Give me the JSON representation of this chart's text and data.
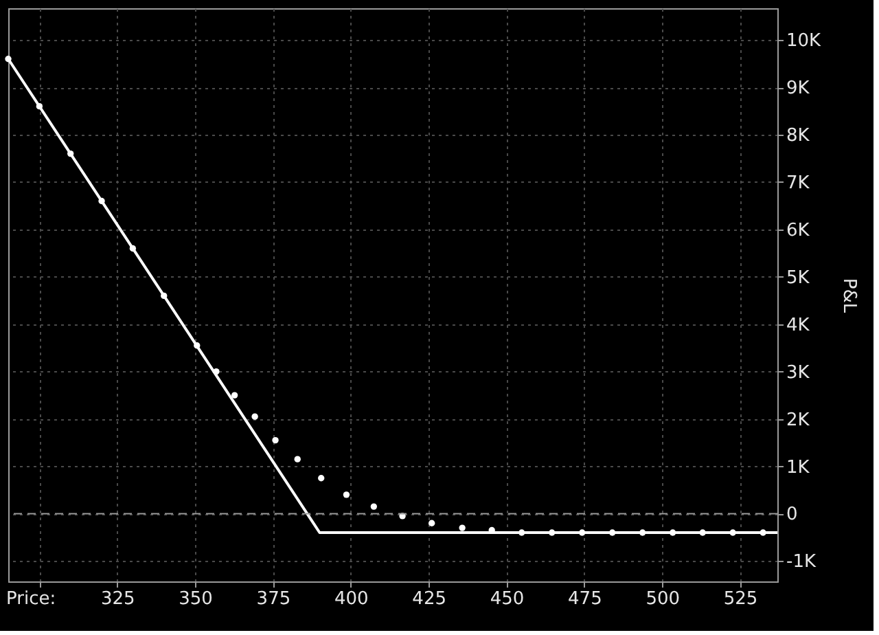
{
  "chart_data": {
    "type": "line",
    "xlabel": "Price:",
    "ylabel": "P&L",
    "xlim": [
      290,
      537
    ],
    "ylim": [
      -1430,
      10670
    ],
    "xticks": [
      {
        "value": 300,
        "label": null
      },
      325,
      350,
      375,
      400,
      425,
      450,
      475,
      500,
      525
    ],
    "yticks": [
      {
        "value": -1000,
        "label": "-1K"
      },
      0,
      {
        "value": 1000,
        "label": "1K"
      },
      {
        "value": 2000,
        "label": "2K"
      },
      {
        "value": 3000,
        "label": "3K"
      },
      {
        "value": 4000,
        "label": "4K"
      },
      {
        "value": 5000,
        "label": "5K"
      },
      {
        "value": 6000,
        "label": "6K"
      },
      {
        "value": 7000,
        "label": "7K"
      },
      {
        "value": 8000,
        "label": "8K"
      },
      {
        "value": 9000,
        "label": "9K"
      },
      {
        "value": 10000,
        "label": "10K"
      }
    ],
    "grid": true,
    "ref_lines": [
      {
        "axis": "y",
        "value": 0,
        "label": null,
        "color": "#9a9a9a",
        "line_style": "dashed"
      }
    ],
    "series": [
      {
        "color": "#ffffff",
        "marker": "none",
        "line_style": "solid",
        "x": [
          290,
          390,
          537
        ],
        "values": [
          9600,
          -400,
          -400
        ]
      },
      {
        "type": "scatter",
        "color": "#ffffff",
        "marker": "circle",
        "x": [
          290,
          300,
          310,
          320,
          330,
          340,
          350.6,
          356.8,
          362.7,
          369.2,
          375.8,
          382.9,
          390.5,
          398.6,
          407.4,
          416.6,
          426,
          435.8,
          445.3,
          454.9,
          464.6,
          474.3,
          484,
          493.7,
          503.4,
          513,
          522.7,
          532.4
        ],
        "values": [
          9600,
          8600,
          7600,
          6600,
          5600,
          4600,
          3550,
          3000,
          2500,
          2050,
          1550,
          1150,
          750,
          400,
          150,
          -50,
          -200,
          -300,
          -350,
          -400,
          -400,
          -400,
          -400,
          -400,
          -400,
          -400,
          -400,
          -400
        ]
      }
    ]
  }
}
